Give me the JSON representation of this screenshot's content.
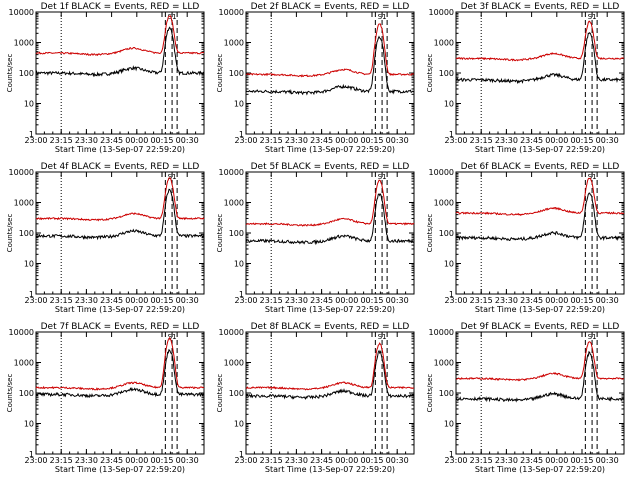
{
  "figure": {
    "ylabel": "Counts/sec",
    "xlabel": "Start Time (13-Sep-07 22:59:20)",
    "x_tick_labels": [
      "23:00",
      "23:15",
      "23:30",
      "23:45",
      "00:00",
      "00:15",
      "00:30"
    ],
    "y_tick_labels": [
      "1",
      "10",
      "100",
      "1000",
      "10000"
    ],
    "peak_tag": "S1",
    "colors": {
      "events": "#000000",
      "lld": "#cc0000",
      "axes": "#000000",
      "background": "#ffffff"
    }
  },
  "chart_data": [
    {
      "type": "line",
      "title": "Det 1f BLACK = Events, RED = LLD",
      "xlabel": "Start Time (13-Sep-07 22:59:20)",
      "ylabel": "Counts/sec",
      "yscale": "log",
      "ylim": [
        1,
        10000
      ],
      "xlim": [
        "23:00",
        "00:40"
      ],
      "series": [
        {
          "name": "Events",
          "color": "#000000",
          "baseline": 100,
          "peak": 3000
        },
        {
          "name": "LLD",
          "color": "#cc0000",
          "baseline": 450,
          "peak": 7000
        }
      ]
    },
    {
      "type": "line",
      "title": "Det 2f BLACK = Events, RED = LLD",
      "xlabel": "Start Time (13-Sep-07 22:59:20)",
      "ylabel": "Counts/sec",
      "yscale": "log",
      "ylim": [
        1,
        10000
      ],
      "xlim": [
        "23:00",
        "00:40"
      ],
      "series": [
        {
          "name": "Events",
          "color": "#000000",
          "baseline": 25,
          "peak": 1500
        },
        {
          "name": "LLD",
          "color": "#cc0000",
          "baseline": 90,
          "peak": 4000
        }
      ]
    },
    {
      "type": "line",
      "title": "Det 3f BLACK = Events, RED = LLD",
      "xlabel": "Start Time (13-Sep-07 22:59:20)",
      "ylabel": "Counts/sec",
      "yscale": "log",
      "ylim": [
        1,
        10000
      ],
      "xlim": [
        "23:00",
        "00:40"
      ],
      "series": [
        {
          "name": "Events",
          "color": "#000000",
          "baseline": 60,
          "peak": 2000
        },
        {
          "name": "LLD",
          "color": "#cc0000",
          "baseline": 300,
          "peak": 4500
        }
      ]
    },
    {
      "type": "line",
      "title": "Det 4f BLACK = Events, RED = LLD",
      "xlabel": "Start Time (13-Sep-07 22:59:20)",
      "ylabel": "Counts/sec",
      "yscale": "log",
      "ylim": [
        1,
        10000
      ],
      "xlim": [
        "23:00",
        "00:40"
      ],
      "series": [
        {
          "name": "Events",
          "color": "#000000",
          "baseline": 80,
          "peak": 2500
        },
        {
          "name": "LLD",
          "color": "#cc0000",
          "baseline": 300,
          "peak": 6000
        }
      ]
    },
    {
      "type": "line",
      "title": "Det 5f BLACK = Events, RED = LLD",
      "xlabel": "Start Time (13-Sep-07 22:59:20)",
      "ylabel": "Counts/sec",
      "yscale": "log",
      "ylim": [
        1,
        10000
      ],
      "xlim": [
        "23:00",
        "00:40"
      ],
      "series": [
        {
          "name": "Events",
          "color": "#000000",
          "baseline": 55,
          "peak": 1800
        },
        {
          "name": "LLD",
          "color": "#cc0000",
          "baseline": 200,
          "peak": 5000
        }
      ]
    },
    {
      "type": "line",
      "title": "Det 6f BLACK = Events, RED = LLD",
      "xlabel": "Start Time (13-Sep-07 22:59:20)",
      "ylabel": "Counts/sec",
      "yscale": "log",
      "ylim": [
        1,
        10000
      ],
      "xlim": [
        "23:00",
        "00:40"
      ],
      "series": [
        {
          "name": "Events",
          "color": "#000000",
          "baseline": 70,
          "peak": 2000
        },
        {
          "name": "LLD",
          "color": "#cc0000",
          "baseline": 450,
          "peak": 6000
        }
      ]
    },
    {
      "type": "line",
      "title": "Det 7f BLACK = Events, RED = LLD",
      "xlabel": "Start Time (13-Sep-07 22:59:20)",
      "ylabel": "Counts/sec",
      "yscale": "log",
      "ylim": [
        1,
        10000
      ],
      "xlim": [
        "23:00",
        "00:40"
      ],
      "series": [
        {
          "name": "Events",
          "color": "#000000",
          "baseline": 90,
          "peak": 2500
        },
        {
          "name": "LLD",
          "color": "#cc0000",
          "baseline": 150,
          "peak": 6000
        }
      ]
    },
    {
      "type": "line",
      "title": "Det 8f BLACK = Events, RED = LLD",
      "xlabel": "Start Time (13-Sep-07 22:59:20)",
      "ylabel": "Counts/sec",
      "yscale": "log",
      "ylim": [
        1,
        10000
      ],
      "xlim": [
        "23:00",
        "00:40"
      ],
      "series": [
        {
          "name": "Events",
          "color": "#000000",
          "baseline": 80,
          "peak": 2200
        },
        {
          "name": "LLD",
          "color": "#cc0000",
          "baseline": 150,
          "peak": 4000
        }
      ]
    },
    {
      "type": "line",
      "title": "Det 9f BLACK = Events, RED = LLD",
      "xlabel": "Start Time (13-Sep-07 22:59:20)",
      "ylabel": "Counts/sec",
      "yscale": "log",
      "ylim": [
        1,
        10000
      ],
      "xlim": [
        "23:00",
        "00:40"
      ],
      "series": [
        {
          "name": "Events",
          "color": "#000000",
          "baseline": 65,
          "peak": 2000
        },
        {
          "name": "LLD",
          "color": "#cc0000",
          "baseline": 300,
          "peak": 4500
        }
      ]
    }
  ]
}
